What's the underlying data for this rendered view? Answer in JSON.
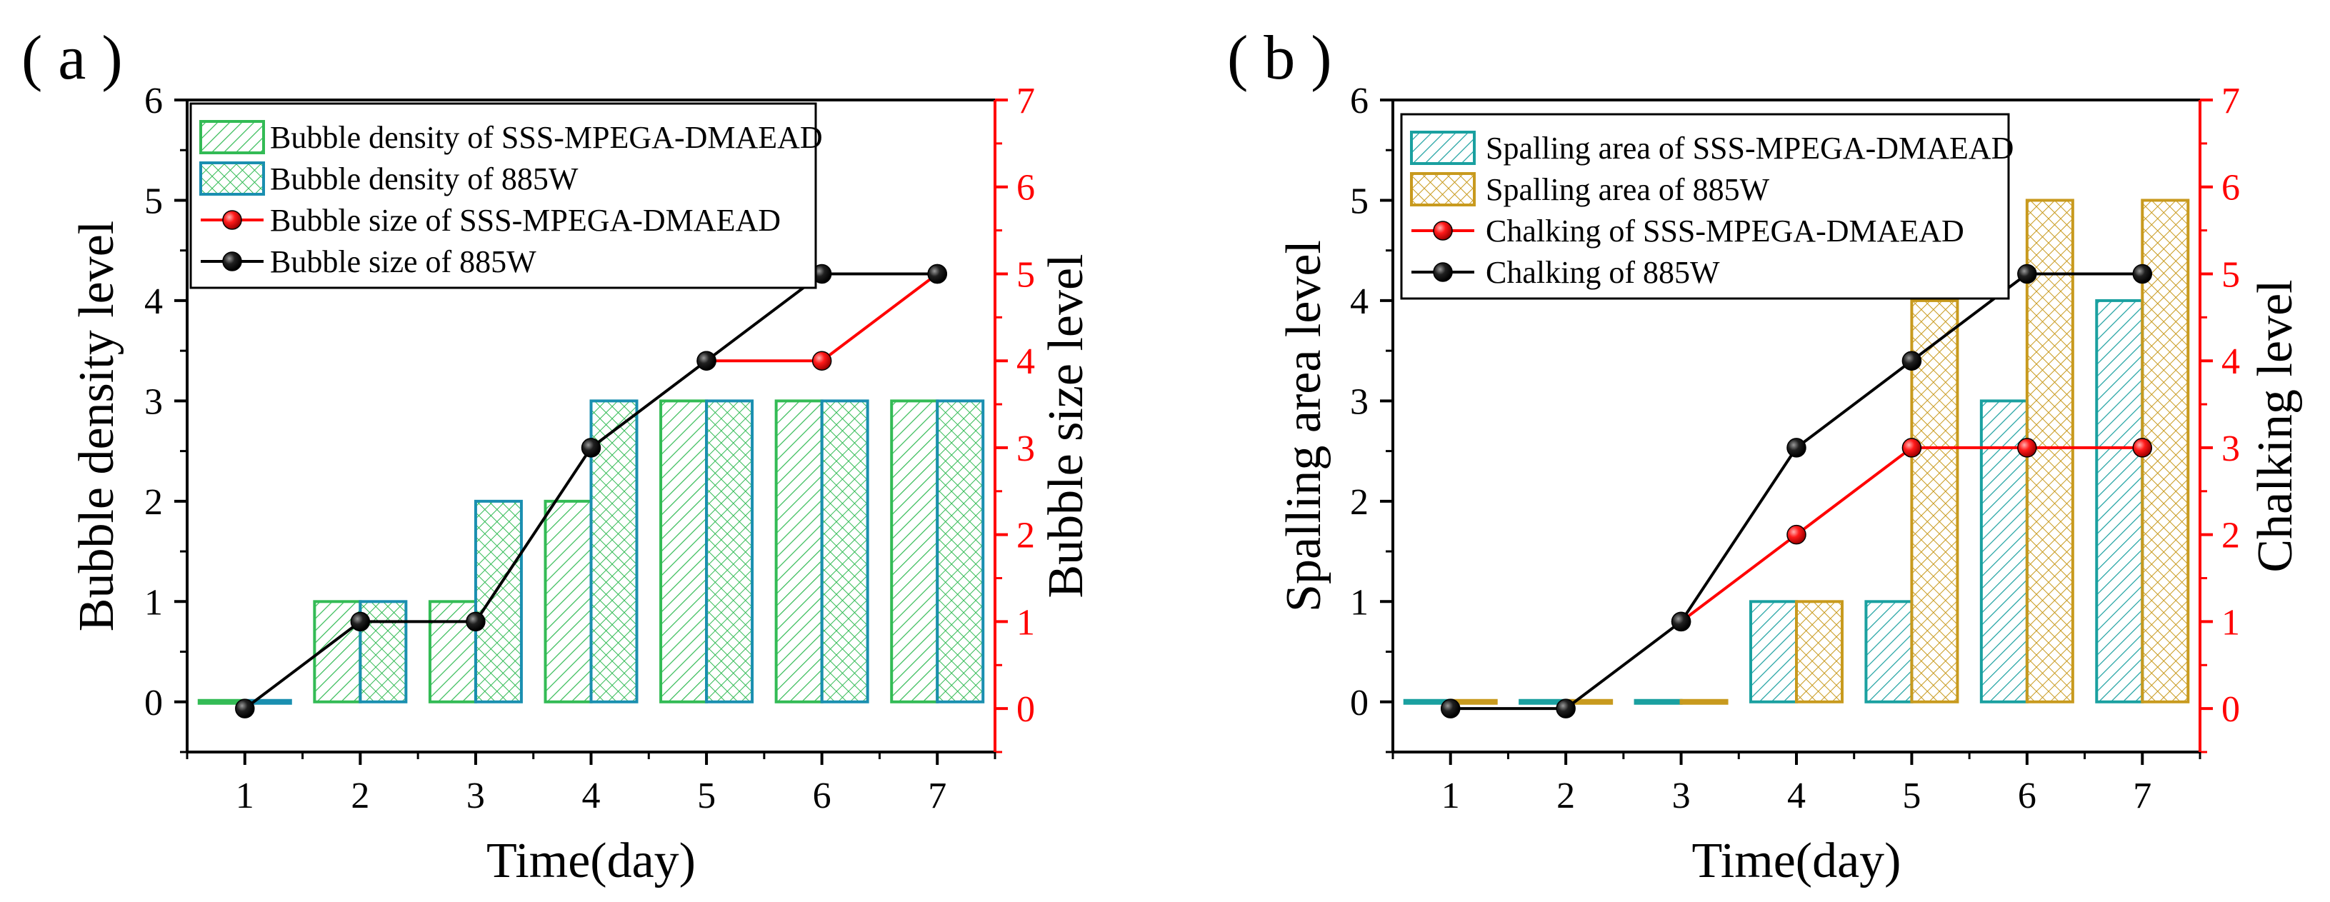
{
  "chart_data": [
    {
      "panel_label": "( a )",
      "type": "bar+line",
      "xlabel": "Time(day)",
      "ylabel_left": "Bubble density level",
      "ylabel_right": "Bubble size level",
      "categories": [
        "1",
        "2",
        "3",
        "4",
        "5",
        "6",
        "7"
      ],
      "ylim_left": [
        -0.5,
        6
      ],
      "ylim_right": [
        -0.5,
        7
      ],
      "yticks_left": [
        "0",
        "1",
        "2",
        "3",
        "4",
        "5",
        "6"
      ],
      "yticks_right": [
        "0",
        "1",
        "2",
        "3",
        "4",
        "5",
        "6",
        "7"
      ],
      "bars": [
        {
          "name": "Bubble density of SSS-MPEGA-DMAEAD",
          "values": [
            0,
            1,
            1,
            2,
            3,
            3,
            3
          ],
          "color": "#33bb55",
          "hatch": "diag"
        },
        {
          "name": "Bubble density of 885W",
          "values": [
            0,
            1,
            2,
            3,
            3,
            3,
            3
          ],
          "color": "#1a8fb0",
          "hatch": "cross",
          "hatch_color": "#33bb55"
        }
      ],
      "lines": [
        {
          "name": "Bubble size of SSS-MPEGA-DMAEAD",
          "values": [
            0,
            1,
            1,
            3,
            4,
            4,
            5
          ],
          "color": "#ff0000",
          "draw_from": 4
        },
        {
          "name": "Bubble size of 885W",
          "values": [
            0,
            1,
            1,
            3,
            4,
            5,
            5
          ],
          "color": "#000000",
          "draw_from": 0
        }
      ],
      "legend_location": "top-left"
    },
    {
      "panel_label": "( b )",
      "type": "bar+line",
      "xlabel": "Time(day)",
      "ylabel_left": "Spalling area level",
      "ylabel_right": "Chalking level",
      "categories": [
        "1",
        "2",
        "3",
        "4",
        "5",
        "6",
        "7"
      ],
      "ylim_left": [
        -0.5,
        6
      ],
      "ylim_right": [
        -0.5,
        7
      ],
      "yticks_left": [
        "0",
        "1",
        "2",
        "3",
        "4",
        "5",
        "6"
      ],
      "yticks_right": [
        "0",
        "1",
        "2",
        "3",
        "4",
        "5",
        "6",
        "7"
      ],
      "bars": [
        {
          "name": "Spalling area of SSS-MPEGA-DMAEAD",
          "values": [
            0,
            0,
            0,
            1,
            1,
            3,
            4
          ],
          "color": "#1aa0a0",
          "hatch": "diag"
        },
        {
          "name": "Spalling area of 885W",
          "values": [
            0,
            0,
            0,
            1,
            4,
            5,
            5
          ],
          "color": "#c89a1e",
          "hatch": "cross"
        }
      ],
      "lines": [
        {
          "name": "Chalking of SSS-MPEGA-DMAEAD",
          "values": [
            0,
            0,
            1,
            2,
            3,
            3,
            3
          ],
          "color": "#ff0000",
          "draw_from": 2
        },
        {
          "name": "Chalking of 885W",
          "values": [
            0,
            0,
            1,
            3,
            4,
            5,
            5
          ],
          "color": "#000000",
          "draw_from": 0
        }
      ],
      "legend_location": "top-left"
    }
  ]
}
